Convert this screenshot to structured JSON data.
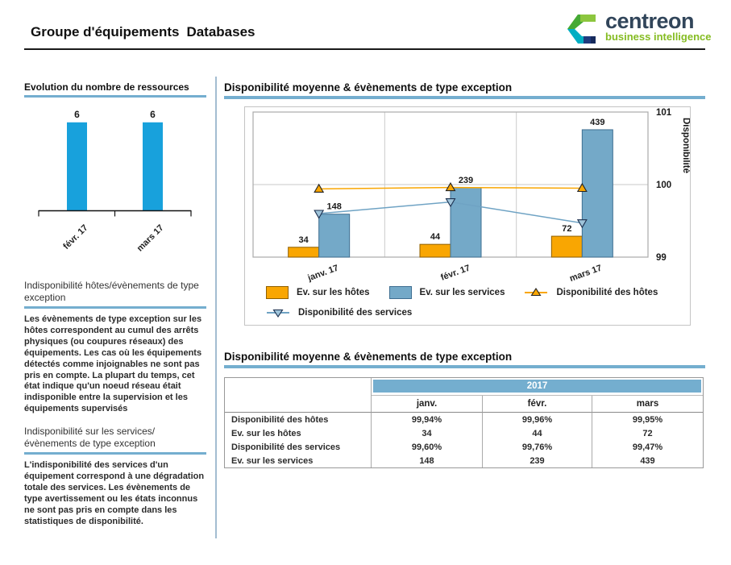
{
  "header": {
    "title_prefix": "Groupe d'équipements",
    "title_emphasis": "Databases",
    "logo": {
      "brand": "centreon",
      "tagline": "business intelligence"
    }
  },
  "colors": {
    "accent_blue": "#74AECF",
    "sidebar_bar_blue": "#18A1DC",
    "events_hosts_orange": "#F9A602",
    "events_services_blue": "#74A9C8",
    "logo_brand_text": "#31455A",
    "logo_green": "#85BC22",
    "divider": "#A3BDD1"
  },
  "sidebar": {
    "resources_chart_title": "Evolution du nombre de ressources",
    "sections": [
      {
        "title": "Indisponibilité  hôtes/évènements de type exception",
        "body": "Les évènements de type exception sur les hôtes correspondent au cumul des arrêts physiques (ou coupures réseaux) des équipements. Les cas où les équipements détectés comme injoignables ne sont pas pris en compte. La plupart du temps, cet état indique qu'un noeud réseau était indisponible entre la supervision et les équipements supervisés"
      },
      {
        "title": "Indisponibilité sur les services/ évènements de type exception",
        "body": "L'indisponibilité des services d'un équipement correspond à une dégradation totale des services. Les évènements de type avertissement ou les états inconnus ne sont pas pris en compte dans les statistiques de disponibilité."
      }
    ]
  },
  "main": {
    "chart_section_title": "Disponibilité moyenne & évènements de type exception",
    "table_section_title": "Disponibilité moyenne & évènements de type exception",
    "table": {
      "year_header": "2017",
      "columns": [
        "janv.",
        "févr.",
        "mars"
      ],
      "rows": [
        {
          "label": "Disponibilité des hôtes",
          "values": [
            "99,94%",
            "99,96%",
            "99,95%"
          ]
        },
        {
          "label": "Ev. sur les hôtes",
          "values": [
            "34",
            "44",
            "72"
          ]
        },
        {
          "label": "Disponibilité des services",
          "values": [
            "99,60%",
            "99,76%",
            "99,47%"
          ]
        },
        {
          "label": "Ev. sur les services",
          "values": [
            "148",
            "239",
            "439"
          ]
        }
      ]
    }
  },
  "chart_data": [
    {
      "id": "resources-evolution",
      "type": "bar",
      "title": "Evolution du nombre de ressources",
      "categories": [
        "févr. 17",
        "mars 17"
      ],
      "values": [
        6,
        6
      ],
      "bar_color": "#18A1DC",
      "ylim": [
        0,
        7
      ],
      "grid": false,
      "legend_position": "none"
    },
    {
      "id": "availability-exceptions",
      "type": "bar+line",
      "title": "Disponibilité moyenne & évènements de type exception",
      "categories": [
        "janv. 17",
        "févr. 17",
        "mars 17"
      ],
      "bar_series": [
        {
          "name": "Ev. sur les hôtes",
          "values": [
            34,
            44,
            72
          ],
          "fill": "#F9A602",
          "stroke": "#8F5F00"
        },
        {
          "name": "Ev. sur les services",
          "values": [
            148,
            239,
            439
          ],
          "fill": "#74A9C8",
          "stroke": "#3E6E91"
        }
      ],
      "line_series": [
        {
          "name": "Disponibilité des hôtes",
          "values": [
            99.94,
            99.96,
            99.95
          ],
          "color": "#F9A602",
          "marker": "triangle-up",
          "marker_fill": "#F9A602",
          "marker_stroke": "#222222"
        },
        {
          "name": "Disponibilité des services",
          "values": [
            99.6,
            99.76,
            99.47
          ],
          "color": "#6FA3C4",
          "marker": "triangle-down",
          "marker_fill": "#9FC4DA",
          "marker_stroke": "#1B2F4E"
        }
      ],
      "bar_axis_max": 500,
      "y2_label": "Disponibilité",
      "y2_ticks": [
        101,
        100,
        99
      ],
      "y2_range": [
        99,
        101
      ],
      "grid": true,
      "legend_position": "bottom"
    }
  ]
}
